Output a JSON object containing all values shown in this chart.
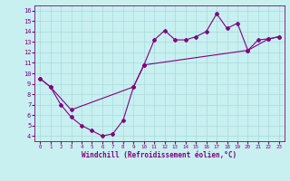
{
  "xlabel": "Windchill (Refroidissement éolien,°C)",
  "bg_color": "#c8f0f0",
  "line_color": "#800080",
  "xlim": [
    -0.5,
    23.5
  ],
  "ylim": [
    3.5,
    16.5
  ],
  "xticks": [
    0,
    1,
    2,
    3,
    4,
    5,
    6,
    7,
    8,
    9,
    10,
    11,
    12,
    13,
    14,
    15,
    16,
    17,
    18,
    19,
    20,
    21,
    22,
    23
  ],
  "yticks": [
    4,
    5,
    6,
    7,
    8,
    9,
    10,
    11,
    12,
    13,
    14,
    15,
    16
  ],
  "line1_x": [
    0,
    1,
    2,
    3,
    4,
    5,
    6,
    7,
    8,
    9,
    10,
    11,
    12,
    13,
    14,
    15,
    16,
    17,
    18,
    19,
    20,
    21,
    22,
    23
  ],
  "line1_y": [
    9.5,
    8.7,
    7.0,
    5.8,
    5.0,
    4.5,
    4.0,
    4.2,
    5.5,
    8.7,
    10.8,
    13.2,
    14.1,
    13.2,
    13.2,
    13.5,
    14.0,
    15.7,
    14.3,
    14.8,
    12.2,
    13.2,
    13.3,
    13.5
  ],
  "line2_x": [
    0,
    1,
    3,
    9,
    10,
    20,
    22,
    23
  ],
  "line2_y": [
    9.5,
    8.7,
    6.5,
    8.7,
    10.8,
    12.2,
    13.3,
    13.5
  ],
  "grid_color": "#a8dada",
  "tick_fontsize": 5,
  "xlabel_fontsize": 5.5
}
